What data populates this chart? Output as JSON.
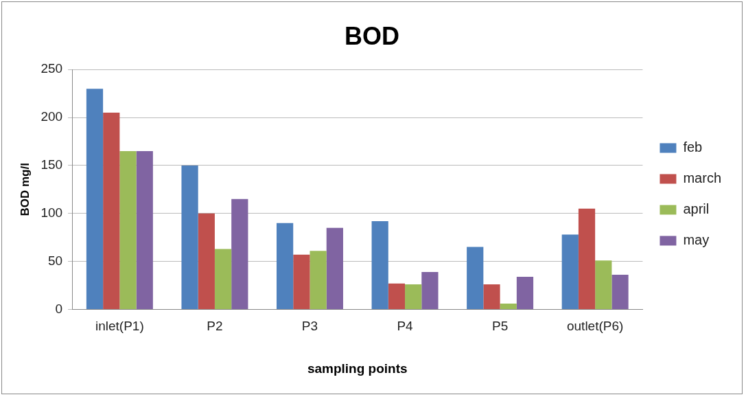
{
  "chart_data": {
    "type": "bar",
    "title": "BOD",
    "xlabel": "sampling points",
    "ylabel": "BOD mg/l",
    "categories": [
      "inlet(P1)",
      "P2",
      "P3",
      "P4",
      "P5",
      "outlet(P6)"
    ],
    "series": [
      {
        "name": "feb",
        "color": "#4f81bd",
        "values": [
          230,
          150,
          90,
          92,
          65,
          78
        ]
      },
      {
        "name": "march",
        "color": "#c0504d",
        "values": [
          205,
          100,
          57,
          27,
          26,
          105
        ]
      },
      {
        "name": "april",
        "color": "#9bbb59",
        "values": [
          165,
          63,
          61,
          26,
          6,
          51
        ]
      },
      {
        "name": "may",
        "color": "#8064a2",
        "values": [
          165,
          115,
          85,
          39,
          34,
          36
        ]
      }
    ],
    "ylim": [
      0,
      250
    ],
    "yticks": [
      0,
      50,
      100,
      150,
      200,
      250
    ],
    "grid": "y",
    "legend": "right"
  }
}
